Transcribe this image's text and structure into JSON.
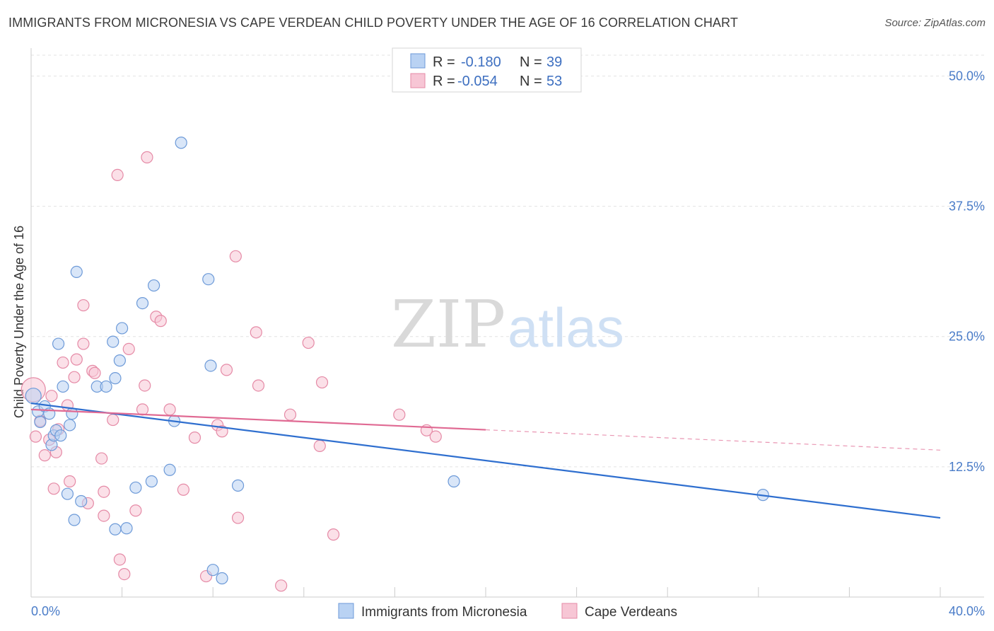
{
  "title": "IMMIGRANTS FROM MICRONESIA VS CAPE VERDEAN CHILD POVERTY UNDER THE AGE OF 16 CORRELATION CHART",
  "source": "Source: ZipAtlas.com",
  "watermark": {
    "zip": "ZIP",
    "atlas": "atlas"
  },
  "legend": {
    "rows": [
      {
        "r_label": "R =",
        "r_value": "-0.180",
        "n_label": "N =",
        "n_value": "39",
        "color": "#a8c8f0"
      },
      {
        "r_label": "R =",
        "r_value": "-0.054",
        "n_label": "N =",
        "n_value": "53",
        "color": "#f5b8ca"
      }
    ]
  },
  "colors": {
    "blue_fill": "#b9d2f3",
    "blue_stroke": "#6d9ad8",
    "blue_line": "#2f6fcf",
    "pink_fill": "#f7c6d5",
    "pink_stroke": "#e58aa6",
    "pink_line": "#e06a93",
    "tick_text": "#4a7cc8"
  },
  "chart_data": {
    "type": "scatter",
    "xlabel": "",
    "ylabel": "Child Poverty Under the Age of 16",
    "xlim": [
      0,
      40
    ],
    "ylim": [
      0,
      52
    ],
    "x_tick_labels": [
      "0.0%",
      "40.0%"
    ],
    "y_ticks": [
      12.5,
      25.0,
      37.5,
      50.0
    ],
    "y_tick_labels": [
      "12.5%",
      "25.0%",
      "37.5%",
      "50.0%"
    ],
    "grid": true,
    "legend_position": "top-center",
    "series": [
      {
        "name": "Immigrants from Micronesia",
        "color": "blue",
        "trend": {
          "x": [
            0,
            40
          ],
          "y": [
            18.6,
            7.6
          ],
          "dashed_from": null
        },
        "points": [
          [
            0.1,
            19.3
          ],
          [
            0.3,
            17.8
          ],
          [
            0.4,
            16.8
          ],
          [
            0.6,
            18.3
          ],
          [
            0.8,
            17.6
          ],
          [
            0.9,
            14.6
          ],
          [
            1.0,
            15.5
          ],
          [
            1.1,
            16.0
          ],
          [
            1.2,
            24.3
          ],
          [
            1.3,
            15.5
          ],
          [
            1.4,
            20.2
          ],
          [
            1.6,
            9.9
          ],
          [
            1.7,
            16.5
          ],
          [
            1.8,
            17.6
          ],
          [
            1.9,
            7.4
          ],
          [
            2.0,
            31.2
          ],
          [
            2.2,
            9.2
          ],
          [
            2.9,
            20.2
          ],
          [
            3.3,
            20.2
          ],
          [
            3.6,
            24.5
          ],
          [
            3.7,
            6.5
          ],
          [
            3.7,
            21.0
          ],
          [
            3.9,
            22.7
          ],
          [
            4.0,
            25.8
          ],
          [
            4.2,
            6.6
          ],
          [
            4.6,
            10.5
          ],
          [
            4.9,
            28.2
          ],
          [
            5.3,
            11.1
          ],
          [
            5.4,
            29.9
          ],
          [
            6.1,
            12.2
          ],
          [
            6.3,
            16.9
          ],
          [
            6.6,
            43.6
          ],
          [
            7.8,
            30.5
          ],
          [
            7.9,
            22.2
          ],
          [
            8.0,
            2.6
          ],
          [
            8.4,
            1.8
          ],
          [
            9.1,
            10.7
          ],
          [
            18.6,
            11.1
          ],
          [
            32.2,
            9.8
          ]
        ]
      },
      {
        "name": "Cape Verdeans",
        "color": "pink",
        "trend": {
          "x": [
            0,
            40
          ],
          "y": [
            18.0,
            14.1
          ],
          "dashed_from": 20.0
        },
        "points": [
          [
            0.1,
            19.9
          ],
          [
            0.2,
            15.4
          ],
          [
            0.4,
            16.9
          ],
          [
            0.6,
            13.6
          ],
          [
            0.8,
            15.1
          ],
          [
            0.9,
            19.3
          ],
          [
            1.0,
            10.4
          ],
          [
            1.1,
            13.9
          ],
          [
            1.2,
            16.1
          ],
          [
            1.4,
            22.5
          ],
          [
            1.6,
            18.4
          ],
          [
            1.7,
            11.1
          ],
          [
            1.9,
            21.1
          ],
          [
            2.0,
            22.8
          ],
          [
            2.3,
            28.0
          ],
          [
            2.3,
            24.3
          ],
          [
            2.5,
            9.0
          ],
          [
            2.7,
            21.7
          ],
          [
            2.8,
            21.5
          ],
          [
            3.1,
            13.3
          ],
          [
            3.2,
            7.8
          ],
          [
            3.2,
            10.1
          ],
          [
            3.6,
            17.0
          ],
          [
            3.8,
            40.5
          ],
          [
            3.9,
            3.6
          ],
          [
            4.1,
            2.2
          ],
          [
            4.3,
            23.8
          ],
          [
            4.6,
            8.3
          ],
          [
            4.9,
            18.0
          ],
          [
            5.0,
            20.3
          ],
          [
            5.1,
            42.2
          ],
          [
            5.5,
            26.9
          ],
          [
            5.7,
            26.5
          ],
          [
            6.1,
            18.0
          ],
          [
            6.7,
            10.3
          ],
          [
            7.2,
            15.3
          ],
          [
            7.7,
            2.0
          ],
          [
            8.2,
            16.5
          ],
          [
            8.4,
            15.9
          ],
          [
            8.6,
            21.8
          ],
          [
            9.0,
            32.7
          ],
          [
            9.1,
            7.6
          ],
          [
            9.9,
            25.4
          ],
          [
            10.0,
            20.3
          ],
          [
            11.0,
            1.1
          ],
          [
            11.4,
            17.5
          ],
          [
            12.2,
            24.4
          ],
          [
            12.7,
            14.5
          ],
          [
            12.8,
            20.6
          ],
          [
            13.3,
            6.0
          ],
          [
            16.2,
            17.5
          ],
          [
            17.4,
            16.0
          ],
          [
            17.8,
            15.4
          ]
        ]
      }
    ]
  },
  "bottom_legend": [
    {
      "label": "Immigrants from Micronesia",
      "color": "blue"
    },
    {
      "label": "Cape Verdeans",
      "color": "pink"
    }
  ]
}
